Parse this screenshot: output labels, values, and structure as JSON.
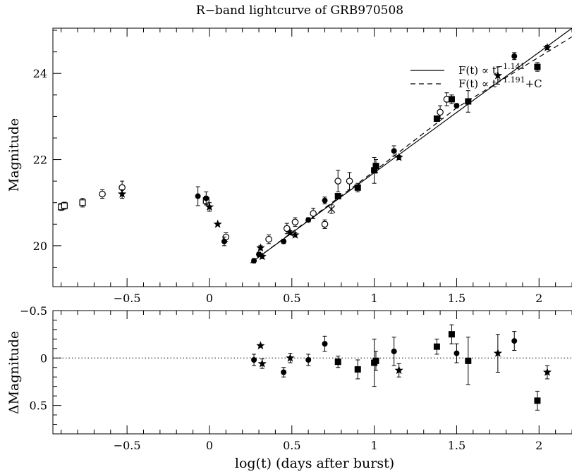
{
  "chart_data": [
    {
      "type": "scatter",
      "title": "R−band lightcurve of GRB970508",
      "ylabel": "Magnitude",
      "xlim": [
        -0.95,
        2.2
      ],
      "ylim": [
        25.05,
        19.05
      ],
      "y_inverted": true,
      "x_ticks": [
        -0.5,
        0,
        0.5,
        1,
        1.5,
        2
      ],
      "x_tick_labels": [
        "−0.5",
        "0",
        "0.5",
        "1",
        "1.5",
        "2"
      ],
      "y_ticks": [
        20,
        22,
        24
      ],
      "y_tick_labels": [
        "20",
        "22",
        "24"
      ],
      "legend": {
        "placement": "top-right",
        "entries": [
          {
            "style": "solid",
            "prefix": "F(t) ∝ t",
            "exponent": "−1.141",
            "suffix": ""
          },
          {
            "style": "dashed",
            "prefix": "F(t) ∝ t",
            "exponent": "−1.191",
            "suffix": "+C"
          }
        ]
      },
      "fits": [
        {
          "style": "solid",
          "points": [
            [
              0.25,
              19.6
            ],
            [
              2.2,
              25.05
            ]
          ]
        },
        {
          "style": "dashed",
          "points": [
            [
              0.25,
              19.6
            ],
            [
              1.0,
              21.73
            ],
            [
              1.5,
              23.2
            ],
            [
              2.2,
              24.85
            ]
          ]
        }
      ],
      "series": [
        {
          "marker": "open-square",
          "points": [
            {
              "x": -0.9,
              "y": 20.9,
              "e": 0.08
            },
            {
              "x": -0.88,
              "y": 20.93,
              "e": 0.08
            },
            {
              "x": -0.77,
              "y": 21.0,
              "e": 0.1
            },
            {
              "x": -0.02,
              "y": 21.05,
              "e": 0.1
            }
          ]
        },
        {
          "marker": "open-circle",
          "points": [
            {
              "x": -0.65,
              "y": 21.2,
              "e": 0.1
            },
            {
              "x": -0.53,
              "y": 21.35,
              "e": 0.15
            },
            {
              "x": 0.1,
              "y": 20.2,
              "e": 0.1
            },
            {
              "x": 0.36,
              "y": 20.15,
              "e": 0.1
            },
            {
              "x": 0.47,
              "y": 20.4,
              "e": 0.12
            },
            {
              "x": 0.52,
              "y": 20.55,
              "e": 0.1
            },
            {
              "x": 0.63,
              "y": 20.75,
              "e": 0.12
            },
            {
              "x": 0.7,
              "y": 20.5,
              "e": 0.1
            },
            {
              "x": 0.78,
              "y": 21.5,
              "e": 0.25
            },
            {
              "x": 0.85,
              "y": 21.5,
              "e": 0.2
            },
            {
              "x": 1.4,
              "y": 23.1,
              "e": 0.15
            },
            {
              "x": 1.44,
              "y": 23.4,
              "e": 0.15
            }
          ]
        },
        {
          "marker": "filled-circle",
          "points": [
            {
              "x": 0.27,
              "y": 19.65,
              "e": 0.05
            },
            {
              "x": 0.3,
              "y": 19.8,
              "e": 0.05
            },
            {
              "x": -0.07,
              "y": 21.15,
              "e": 0.22
            },
            {
              "x": -0.02,
              "y": 21.1,
              "e": 0.15
            },
            {
              "x": 0.09,
              "y": 20.1,
              "e": 0.1
            },
            {
              "x": 0.45,
              "y": 20.1,
              "e": 0.05
            },
            {
              "x": 0.6,
              "y": 20.6,
              "e": 0.05
            },
            {
              "x": 0.7,
              "y": 21.05,
              "e": 0.08
            },
            {
              "x": 1.12,
              "y": 22.2,
              "e": 0.12
            },
            {
              "x": 1.5,
              "y": 23.25,
              "e": 0.05
            },
            {
              "x": 1.85,
              "y": 24.4,
              "e": 0.08
            }
          ]
        },
        {
          "marker": "filled-square",
          "points": [
            {
              "x": 0.78,
              "y": 21.15,
              "e": 0.05
            },
            {
              "x": 0.9,
              "y": 21.35,
              "e": 0.1
            },
            {
              "x": 1.0,
              "y": 21.75,
              "e": 0.3
            },
            {
              "x": 1.01,
              "y": 21.85,
              "e": 0.15
            },
            {
              "x": 1.38,
              "y": 22.95,
              "e": 0.05
            },
            {
              "x": 1.47,
              "y": 23.4,
              "e": 0.1
            },
            {
              "x": 1.57,
              "y": 23.35,
              "e": 0.25
            },
            {
              "x": 1.99,
              "y": 24.15,
              "e": 0.1
            }
          ]
        },
        {
          "marker": "star",
          "points": [
            {
              "x": -0.53,
              "y": 21.2,
              "e": 0.1
            },
            {
              "x": 0.05,
              "y": 20.5,
              "e": 0
            },
            {
              "x": 0.0,
              "y": 20.9,
              "e": 0.1
            },
            {
              "x": 0.31,
              "y": 19.95,
              "e": 0.05
            },
            {
              "x": 0.32,
              "y": 19.75,
              "e": 0.05
            },
            {
              "x": 0.49,
              "y": 20.3,
              "e": 0.05
            },
            {
              "x": 0.52,
              "y": 20.25,
              "e": 0.05
            },
            {
              "x": 1.15,
              "y": 22.05,
              "e": 0.05
            },
            {
              "x": 1.75,
              "y": 23.95,
              "e": 0.2
            },
            {
              "x": 2.05,
              "y": 24.6,
              "e": 0.05
            }
          ]
        },
        {
          "marker": "cross",
          "points": [
            {
              "x": 0.74,
              "y": 20.85,
              "e": 0.1
            }
          ]
        }
      ]
    },
    {
      "type": "scatter",
      "xlabel": "log(t) (days after burst)",
      "ylabel": "ΔMagnitude",
      "xlim": [
        -0.95,
        2.2
      ],
      "ylim": [
        -0.5,
        0.8
      ],
      "x_ticks": [
        -0.5,
        0,
        0.5,
        1,
        1.5,
        2
      ],
      "x_tick_labels": [
        "−0.5",
        "0",
        "0.5",
        "1",
        "1.5",
        "2"
      ],
      "y_ticks": [
        -0.5,
        0,
        0.5
      ],
      "y_tick_labels": [
        "−0.5",
        "0",
        "0.5"
      ],
      "zero_line": "dotted",
      "series": [
        {
          "marker": "filled-circle",
          "points": [
            {
              "x": 0.27,
              "y": 0.02,
              "e": 0.06
            },
            {
              "x": 0.45,
              "y": 0.15,
              "e": 0.05
            },
            {
              "x": 0.6,
              "y": 0.02,
              "e": 0.06
            },
            {
              "x": 0.7,
              "y": -0.15,
              "e": 0.08
            },
            {
              "x": 1.12,
              "y": -0.07,
              "e": 0.15
            },
            {
              "x": 1.5,
              "y": -0.05,
              "e": 0.1
            },
            {
              "x": 1.85,
              "y": -0.18,
              "e": 0.1
            }
          ]
        },
        {
          "marker": "filled-square",
          "points": [
            {
              "x": 0.78,
              "y": 0.04,
              "e": 0.06
            },
            {
              "x": 0.9,
              "y": 0.12,
              "e": 0.1
            },
            {
              "x": 1.0,
              "y": 0.05,
              "e": 0.25
            },
            {
              "x": 1.01,
              "y": 0.03,
              "e": 0.1
            },
            {
              "x": 1.38,
              "y": -0.12,
              "e": 0.08
            },
            {
              "x": 1.47,
              "y": -0.25,
              "e": 0.1
            },
            {
              "x": 1.57,
              "y": 0.03,
              "e": 0.25
            },
            {
              "x": 1.99,
              "y": 0.45,
              "e": 0.1
            }
          ]
        },
        {
          "marker": "star",
          "points": [
            {
              "x": 0.31,
              "y": -0.13,
              "e": 0
            },
            {
              "x": 0.32,
              "y": 0.06,
              "e": 0.05
            },
            {
              "x": 0.49,
              "y": 0.0,
              "e": 0.05
            },
            {
              "x": 1.15,
              "y": 0.13,
              "e": 0.07
            },
            {
              "x": 1.75,
              "y": -0.05,
              "e": 0.2
            },
            {
              "x": 2.05,
              "y": 0.15,
              "e": 0.07
            }
          ]
        }
      ]
    }
  ]
}
